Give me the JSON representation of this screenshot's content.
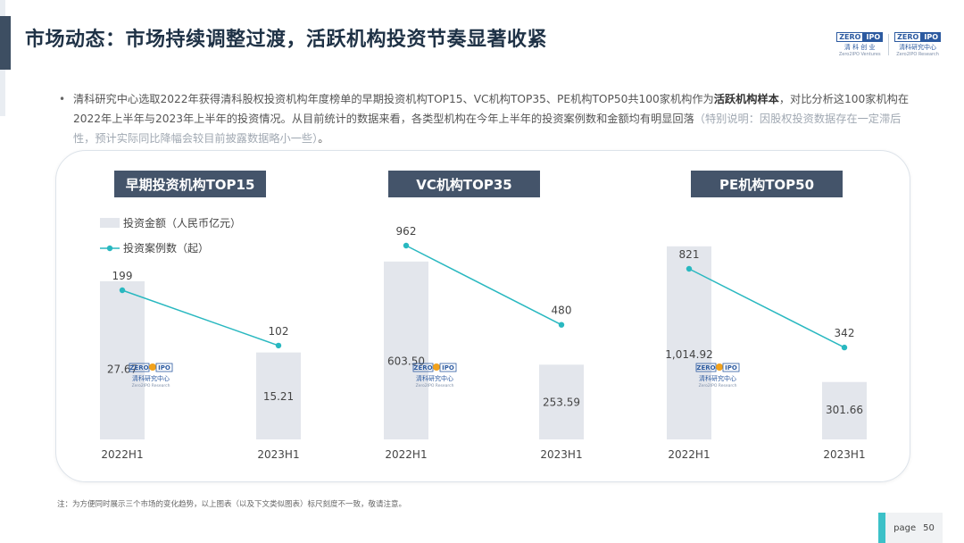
{
  "header": {
    "title": "市场动态：市场持续调整过渡，活跃机构投资节奏显著收紧"
  },
  "logos": {
    "left": {
      "mark_a": "ZERO",
      "mark_b": "IPO",
      "sub": "清 科 创 业",
      "sub2": "Zero2IPO Ventures"
    },
    "right": {
      "mark_a": "ZERO",
      "mark_b": "IPO",
      "sub": "清科研究中心",
      "sub2": "Zero2IPO Research"
    }
  },
  "intro": {
    "bullet": "•",
    "part1": "清科研究中心选取2022年获得清科股权投资机构年度榜单的早期投资机构TOP15、VC机构TOP35、PE机构TOP50共100家机构作为",
    "strong": "活跃机构样本",
    "part2": "，对比分析这100家机构在2022年上半年与2023年上半年的投资情况。从目前统计的数据来看，各类型机构在今年上半年的投资案例数和金额均有明显回落",
    "gray": "（特别说明：因股权投资数据存在一定滞后性，预计实际同比降幅会较目前披露数据略小一些）",
    "end": "。"
  },
  "legend": {
    "bar": "投资金额（人民币亿元）",
    "line": "投资案例数（起）"
  },
  "watermark": {
    "mark_a": "ZERO",
    "mark_b": "IPO",
    "sub": "清科研究中心",
    "sub2": "Zero2IPO Research"
  },
  "chart_data": [
    {
      "type": "bar",
      "title": "早期投资机构TOP15",
      "categories": [
        "2022H1",
        "2023H1"
      ],
      "series": [
        {
          "name": "投资金额（人民币亿元）",
          "type": "bar",
          "values": [
            27.67,
            15.21
          ],
          "labels": [
            "27.67",
            "15.21"
          ]
        },
        {
          "name": "投资案例数（起）",
          "type": "line",
          "values": [
            199,
            102
          ],
          "labels": [
            "199",
            "102"
          ]
        }
      ]
    },
    {
      "type": "bar",
      "title": "VC机构TOP35",
      "categories": [
        "2022H1",
        "2023H1"
      ],
      "series": [
        {
          "name": "投资金额（人民币亿元）",
          "type": "bar",
          "values": [
            603.5,
            253.59
          ],
          "labels": [
            "603.50",
            "253.59"
          ]
        },
        {
          "name": "投资案例数（起）",
          "type": "line",
          "values": [
            962,
            480
          ],
          "labels": [
            "962",
            "480"
          ]
        }
      ]
    },
    {
      "type": "bar",
      "title": "PE机构TOP50",
      "categories": [
        "2022H1",
        "2023H1"
      ],
      "series": [
        {
          "name": "投资金额（人民币亿元）",
          "type": "bar",
          "values": [
            1014.92,
            301.66
          ],
          "labels": [
            "1,014.92",
            "301.66"
          ]
        },
        {
          "name": "投资案例数（起）",
          "type": "line",
          "values": [
            821,
            342
          ],
          "labels": [
            "821",
            "342"
          ]
        }
      ]
    }
  ],
  "colors": {
    "bar": "#e3e6ec",
    "line": "#29b8c0",
    "title_bg": "#44546a"
  },
  "footnote": "注：为方便同时展示三个市场的变化趋势，以上图表（以及下文类似图表）标尺刻度不一致，敬请注意。",
  "page": {
    "label": "page",
    "number": "50"
  }
}
